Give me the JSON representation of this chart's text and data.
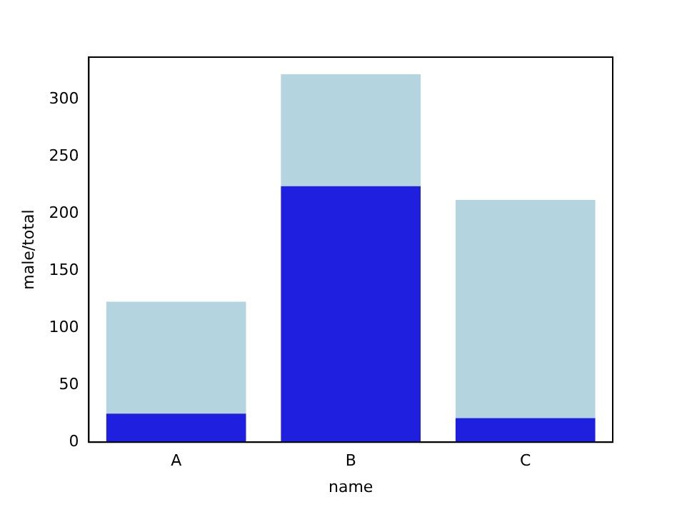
{
  "chart_data": {
    "type": "bar",
    "xlabel": "name",
    "ylabel": "male/total",
    "categories": [
      "A",
      "B",
      "C"
    ],
    "stacked": true,
    "series": [
      {
        "color": "#1f1fe0",
        "values": [
          25,
          224,
          21
        ]
      },
      {
        "color": "#b4d5e0",
        "values": [
          98,
          98,
          191
        ]
      }
    ],
    "ylim": [
      0,
      337
    ],
    "yticks": [
      0,
      50,
      100,
      150,
      200,
      250,
      300
    ],
    "grid": false,
    "legend": false
  }
}
